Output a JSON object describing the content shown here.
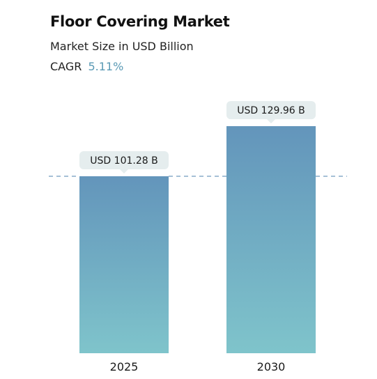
{
  "header": {
    "title": "Floor Covering Market",
    "subtitle": "Market Size in USD Billion",
    "cagr_label": "CAGR",
    "cagr_value": "5.11%"
  },
  "colors": {
    "bar_top": "#6395bb",
    "bar_bottom": "#7fc4cb",
    "callout_bg": "#e5edee",
    "reference_line": "#6f9bbd",
    "cagr_accent": "#5a9ab5"
  },
  "chart_data": {
    "type": "bar",
    "title": "Floor Covering Market",
    "subtitle": "Market Size in USD Billion",
    "categories": [
      "2025",
      "2030"
    ],
    "values": [
      101.28,
      129.96
    ],
    "value_labels": [
      "USD 101.28 B",
      "USD 129.96 B"
    ],
    "unit": "USD Billion",
    "xlabel": "",
    "ylabel": "",
    "ylim": [
      0,
      140
    ],
    "grid": false,
    "legend": "none",
    "reference_line": {
      "value": 101.28,
      "style": "dashed"
    }
  }
}
